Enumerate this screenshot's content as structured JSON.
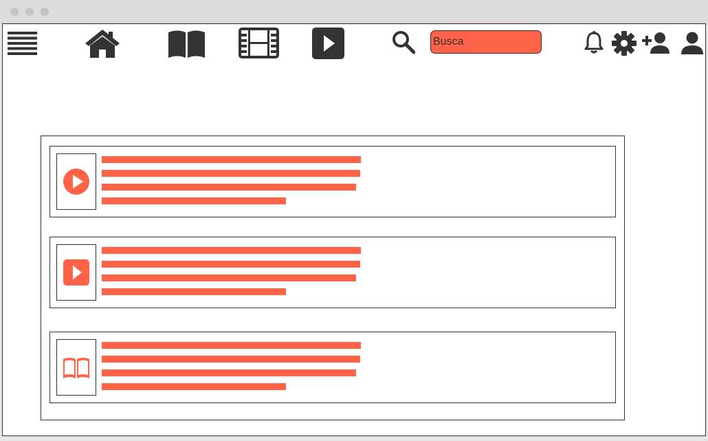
{
  "colors": {
    "accent": "#ff6347",
    "icon": "#333333",
    "border": "#333333",
    "titlebar": "#dcdcdc",
    "background": "#ffffff"
  },
  "toolbar": {
    "icons": [
      "menu-icon",
      "home-icon",
      "book-icon",
      "film-icon",
      "video-icon",
      "search-icon",
      "bell-icon",
      "gear-icon",
      "add-user-icon",
      "user-icon"
    ],
    "search": {
      "placeholder": "Busca",
      "value": ""
    }
  },
  "feed": {
    "items": [
      {
        "thumbnail_icon": "play-circle-icon"
      },
      {
        "thumbnail_icon": "video-icon"
      },
      {
        "thumbnail_icon": "book-icon"
      }
    ]
  }
}
